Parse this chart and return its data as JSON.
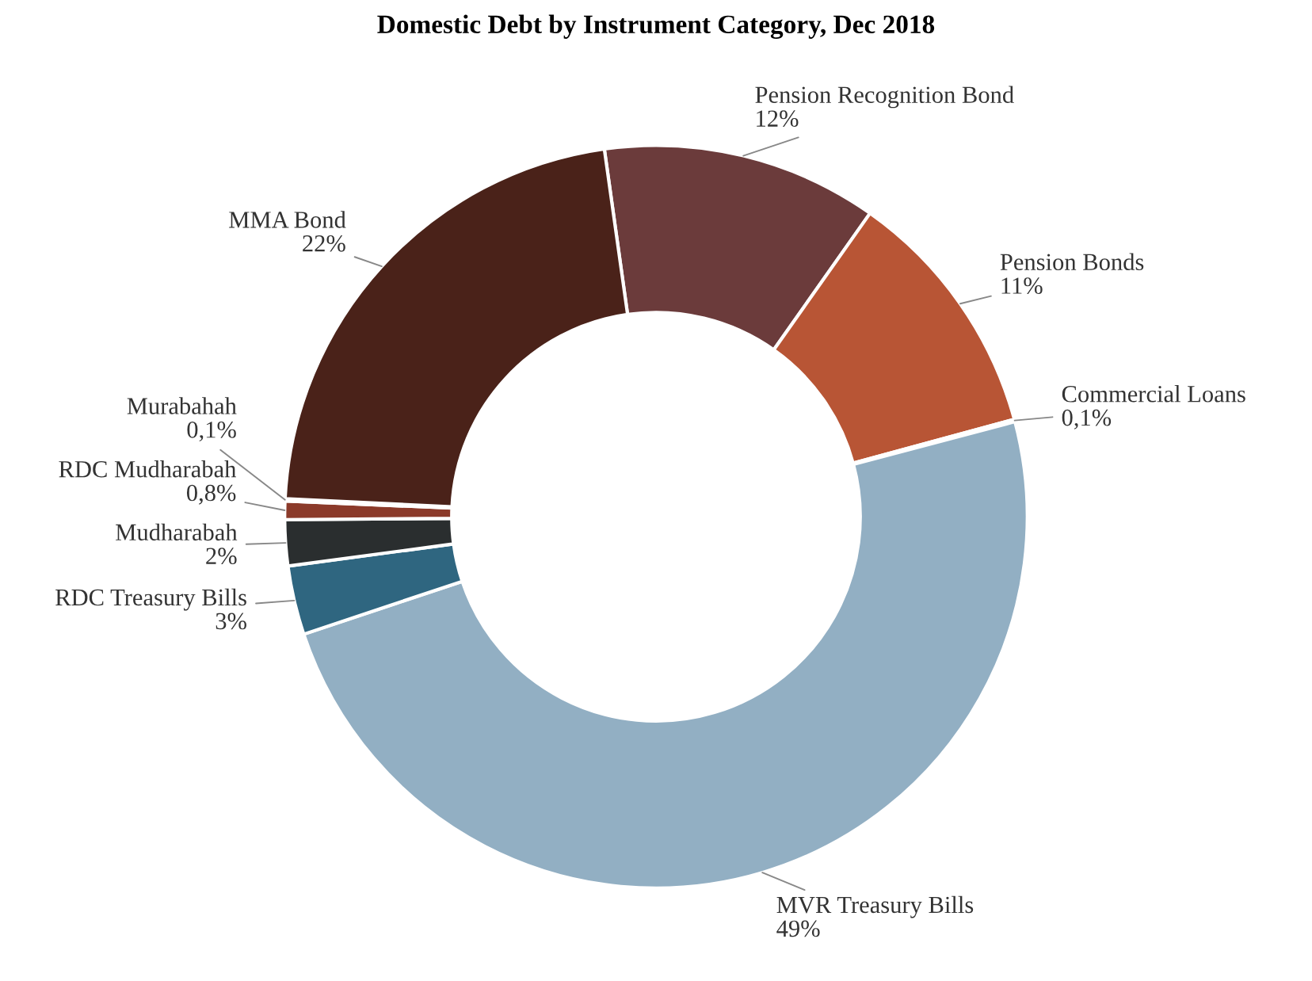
{
  "chart_data": {
    "type": "donut",
    "title": "Domestic Debt by Instrument Category, Dec 2018",
    "categories": [
      "Pension Recognition Bond",
      "Pension Bonds",
      "Commercial Loans",
      "MVR Treasury Bills",
      "RDC Treasury Bills",
      "Mudharabah",
      "RDC Mudharabah",
      "Murabahah",
      "MMA Bond"
    ],
    "values": [
      12,
      11,
      0.1,
      49,
      3,
      2,
      0.8,
      0.1,
      22
    ],
    "value_labels": [
      "12%",
      "11%",
      "0,1%",
      "49%",
      "3%",
      "2%",
      "0,8%",
      "0,1%",
      "22%"
    ],
    "colors": [
      "#6b3b3b",
      "#b85535",
      "#d9c7b5",
      "#92afc3",
      "#2f6680",
      "#2a2e2f",
      "#8b3a2a",
      "#c9b2a2",
      "#4a2219"
    ],
    "legend": false
  }
}
